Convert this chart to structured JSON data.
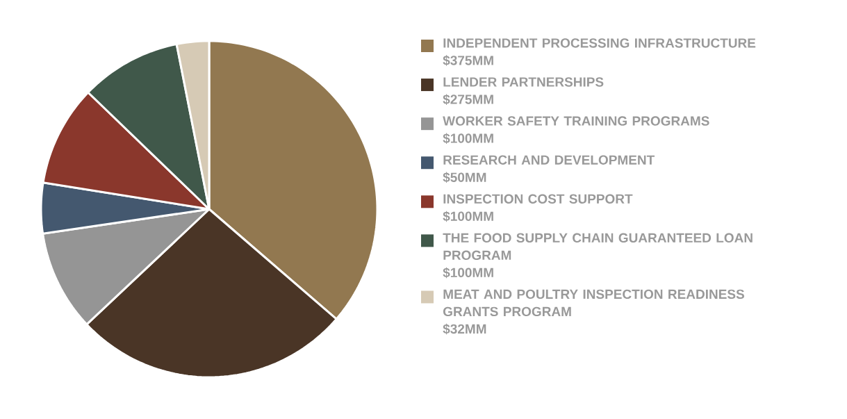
{
  "chart_data": {
    "type": "pie",
    "categories": [
      "INDEPENDENT PROCESSING INFRASTRUCTURE",
      "LENDER PARTNERSHIPS",
      "WORKER SAFETY TRAINING PROGRAMS",
      "RESEARCH AND DEVELOPMENT",
      "INSPECTION COST SUPPORT",
      "THE FOOD SUPPLY CHAIN GUARANTEED LOAN PROGRAM",
      "MEAT AND POULTRY INSPECTION READINESS GRANTS PROGRAM"
    ],
    "values": [
      375,
      275,
      100,
      50,
      100,
      100,
      32
    ],
    "value_labels": [
      "$375MM",
      "$275MM",
      "$100MM",
      "$50MM",
      "$100MM",
      "$100MM",
      "$32MM"
    ],
    "colors": [
      "#927850",
      "#4a3526",
      "#959595",
      "#44586f",
      "#8a372c",
      "#40584a",
      "#d6cab5"
    ],
    "legend": "right"
  }
}
